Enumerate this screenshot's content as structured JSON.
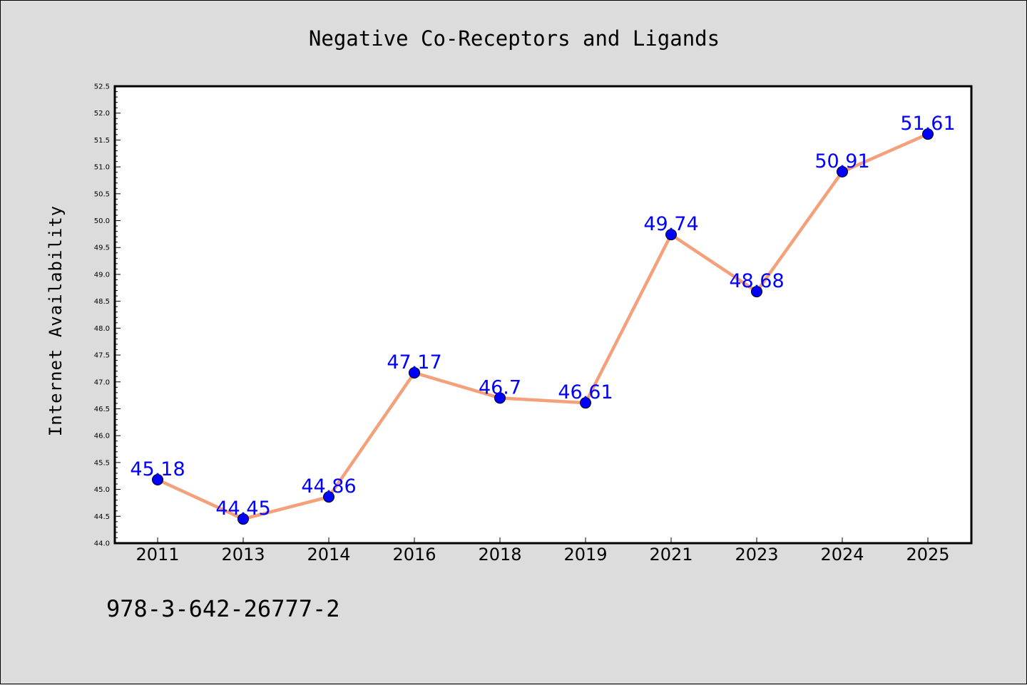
{
  "caption": "978-3-642-26777-2",
  "colors": {
    "background": "#dcdcdc",
    "plot_background": "#ffffff",
    "line": "#f4a07a",
    "marker": "#0000ff",
    "data_label": "#0000ff"
  },
  "chart_data": {
    "type": "line",
    "title": "Negative Co-Receptors and Ligands",
    "xlabel": "",
    "ylabel": "Internet Availability",
    "categories": [
      "2011",
      "2013",
      "2014",
      "2016",
      "2018",
      "2019",
      "2021",
      "2023",
      "2024",
      "2025"
    ],
    "series": [
      {
        "values": [
          45.18,
          44.45,
          44.86,
          47.17,
          46.7,
          46.61,
          49.74,
          48.68,
          50.91,
          51.61
        ],
        "data_labels": [
          "45.18",
          "44.45",
          "44.86",
          "47.17",
          "46.7",
          "46.61",
          "49.74",
          "48.68",
          "50.91",
          "51.61"
        ]
      }
    ],
    "ylim": [
      44.0,
      52.5
    ],
    "yticks": [
      "44.0",
      "44.5",
      "45.0",
      "45.5",
      "46.0",
      "46.5",
      "47.0",
      "47.5",
      "48.0",
      "48.5",
      "49.0",
      "49.5",
      "50.0",
      "50.5",
      "51.0",
      "51.5",
      "52.0",
      "52.5"
    ],
    "grid": false,
    "legend": "none",
    "markers": "filled circles"
  }
}
